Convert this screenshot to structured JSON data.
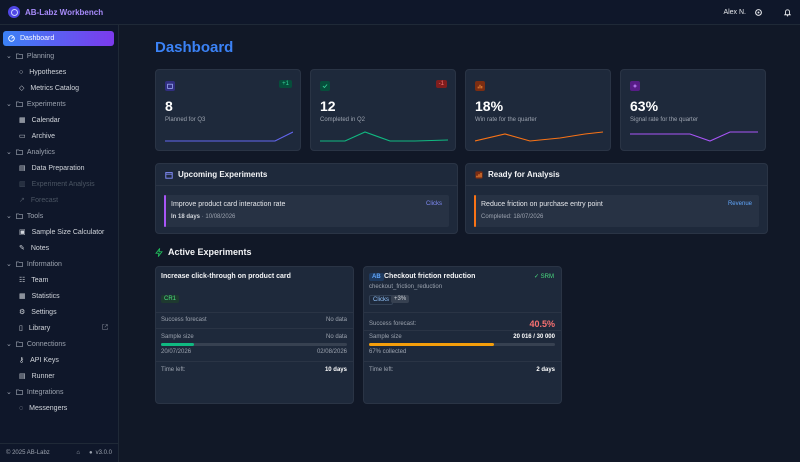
{
  "app": {
    "brand": "AB-Labz Workbench",
    "user": "Alex N."
  },
  "sidebar": {
    "active": "Dashboard",
    "sections": {
      "planning": "Planning",
      "experiments": "Experiments",
      "analytics": "Analytics",
      "tools": "Tools",
      "information": "Information",
      "connections": "Connections",
      "integrations": "Integrations"
    },
    "items": {
      "hypotheses": "Hypotheses",
      "metrics_catalog": "Metrics Catalog",
      "calendar": "Calendar",
      "archive": "Archive",
      "data_preparation": "Data Preparation",
      "experiment_analysis": "Experiment Analysis",
      "forecast": "Forecast",
      "sample_size_calculator": "Sample Size Calculator",
      "notes": "Notes",
      "team": "Team",
      "statistics": "Statistics",
      "settings": "Settings",
      "library": "Library",
      "api_keys": "API Keys",
      "runner": "Runner",
      "messengers": "Messengers"
    },
    "footer": {
      "copyright": "© 2025 AB-Labz",
      "version": "v3.0.0"
    }
  },
  "main": {
    "title": "Dashboard",
    "stats": [
      {
        "value": "8",
        "label": "Planned for Q3",
        "badge": "+1",
        "color": "#6366f1"
      },
      {
        "value": "12",
        "label": "Completed in Q2",
        "badge": "-1",
        "color": "#10b981"
      },
      {
        "value": "18%",
        "label": "Win rate for the quarter",
        "badge": "",
        "color": "#f97316"
      },
      {
        "value": "63%",
        "label": "Signal rate for the quarter",
        "badge": "",
        "color": "#a855f7"
      }
    ],
    "upcoming": {
      "title": "Upcoming Experiments",
      "item": {
        "name": "Improve product card interaction rate",
        "when": "In 18 days",
        "date": "· 10/08/2026",
        "tag": "Clicks"
      }
    },
    "ready": {
      "title": "Ready for Analysis",
      "item": {
        "name": "Reduce friction on purchase entry point",
        "completed": "Completed: 18/07/2026",
        "tag": "Revenue"
      }
    },
    "active_title": "Active Experiments",
    "cards": [
      {
        "title": "Increase click-through on product card",
        "tag": "CR1",
        "forecast_label": "Success forecast",
        "forecast_value": "No data",
        "sample_label": "Sample size",
        "sample_value": "No data",
        "progress": 0.18,
        "start": "20/07/2026",
        "end": "02/08/2026",
        "time_label": "Time left:",
        "time_value": "10 days"
      },
      {
        "badge": "AB",
        "title": "Checkout friction reduction",
        "subtitle": "checkout_friction_reduction",
        "srm": "✓ SRM",
        "tags": [
          "Clicks",
          "+3%"
        ],
        "forecast_label": "Success forecast:",
        "forecast_value": "40.5%",
        "sample_label": "Sample size",
        "sample_value": "20 016 / 30 000",
        "progress": 0.67,
        "collected": "67% collected",
        "time_label": "Time left:",
        "time_value": "2 days"
      }
    ]
  }
}
